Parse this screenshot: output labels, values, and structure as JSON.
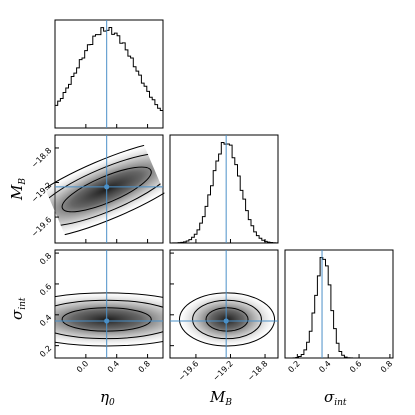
{
  "chart_data": {
    "type": "corner",
    "parameters": [
      {
        "symbol": "η",
        "subscript": "0",
        "range": [
          -0.4,
          1.0
        ],
        "ticks": [
          "0.0",
          "0.4",
          "0.8"
        ],
        "tick_values": [
          0.0,
          0.4,
          0.8
        ],
        "truth": 0.27
      },
      {
        "symbol": "M",
        "subscript": "B",
        "range": [
          -19.9,
          -18.65
        ],
        "ticks": [
          "−19.6",
          "−19.2",
          "−18.8"
        ],
        "tick_values": [
          -19.6,
          -19.2,
          -18.8
        ],
        "truth": -19.25
      },
      {
        "symbol": "σ",
        "subscript": "int",
        "range": [
          0.12,
          0.82
        ],
        "ticks": [
          "0.2",
          "0.4",
          "0.6",
          "0.8"
        ],
        "tick_values": [
          0.2,
          0.4,
          0.6,
          0.8
        ],
        "truth": 0.36
      }
    ],
    "marginals": [
      {
        "parameter": 0,
        "mean": 0.27,
        "sd": 0.38,
        "skew": 0
      },
      {
        "parameter": 1,
        "mean": -19.25,
        "sd": 0.16,
        "skew": 0
      },
      {
        "parameter": 2,
        "mean": 0.36,
        "sd": 0.05,
        "skew": 0.6
      }
    ],
    "joint": [
      {
        "x": 0,
        "y": 1,
        "cx": 0.27,
        "cy": -19.28,
        "sx": 0.38,
        "sy": 0.17,
        "rho": 0.78
      },
      {
        "x": 0,
        "y": 2,
        "cx": 0.27,
        "cy": 0.37,
        "sx": 0.38,
        "sy": 0.05,
        "rho": 0.0
      },
      {
        "x": 1,
        "y": 2,
        "cx": -19.24,
        "cy": 0.37,
        "sx": 0.16,
        "sy": 0.05,
        "rho": 0.0
      }
    ],
    "contour_levels_sigma": [
      1,
      2,
      3
    ],
    "truth_color": "#4a90c8"
  }
}
